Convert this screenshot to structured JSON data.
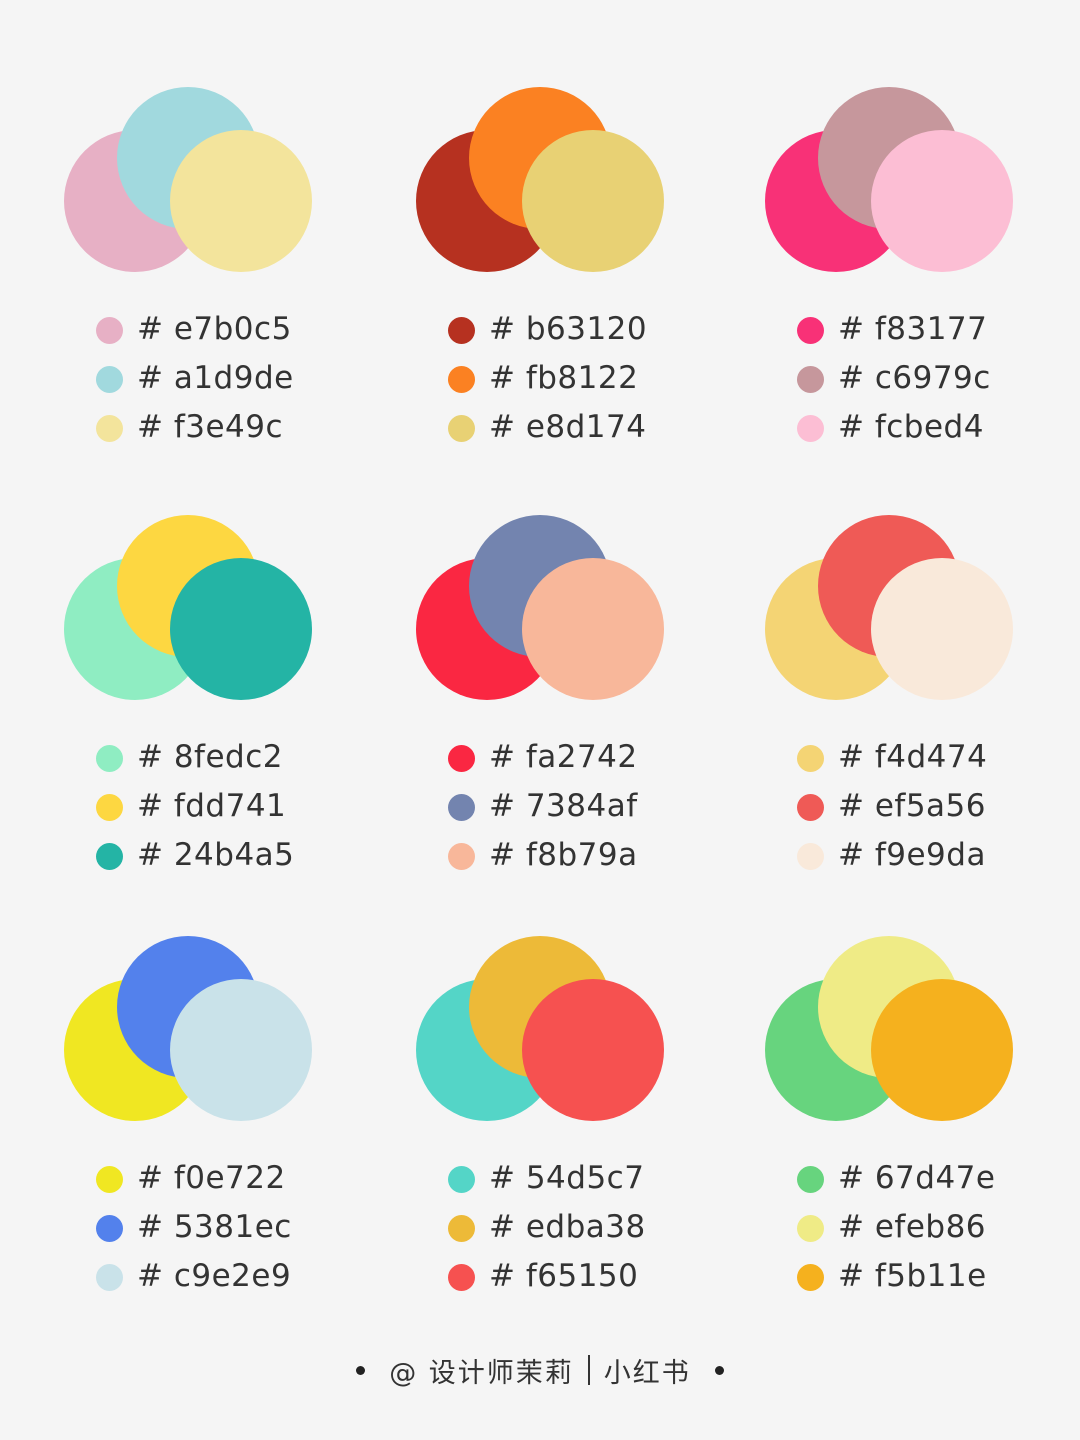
{
  "palettes": [
    {
      "colors": [
        "#e7b0c5",
        "#a1d9de",
        "#f3e49c"
      ],
      "labels": [
        "# e7b0c5",
        "# a1d9de",
        "# f3e49c"
      ]
    },
    {
      "colors": [
        "#b63120",
        "#fb8122",
        "#e8d174"
      ],
      "labels": [
        "# b63120",
        "# fb8122",
        "# e8d174"
      ]
    },
    {
      "colors": [
        "#f83177",
        "#c6979c",
        "#fcbed4"
      ],
      "labels": [
        "# f83177",
        "# c6979c",
        "# fcbed4"
      ]
    },
    {
      "colors": [
        "#8fedc2",
        "#fdd741",
        "#24b4a5"
      ],
      "labels": [
        "# 8fedc2",
        "# fdd741",
        "# 24b4a5"
      ]
    },
    {
      "colors": [
        "#fa2742",
        "#7384af",
        "#f8b79a"
      ],
      "labels": [
        "# fa2742",
        "# 7384af",
        "# f8b79a"
      ]
    },
    {
      "colors": [
        "#f4d474",
        "#ef5a56",
        "#f9e9da"
      ],
      "labels": [
        "# f4d474",
        "# ef5a56",
        "# f9e9da"
      ]
    },
    {
      "colors": [
        "#f0e722",
        "#5381ec",
        "#c9e2e9"
      ],
      "labels": [
        "# f0e722",
        "# 5381ec",
        "# c9e2e9"
      ]
    },
    {
      "colors": [
        "#54d5c7",
        "#edba38",
        "#f65150"
      ],
      "labels": [
        "# 54d5c7",
        "# edba38",
        "# f65150"
      ]
    },
    {
      "colors": [
        "#67d47e",
        "#efeb86",
        "#f5b11e"
      ],
      "labels": [
        "# 67d47e",
        "# efeb86",
        "# f5b11e"
      ]
    }
  ],
  "footer": {
    "author": "@ 设计师茉莉",
    "platform": "小红书"
  }
}
